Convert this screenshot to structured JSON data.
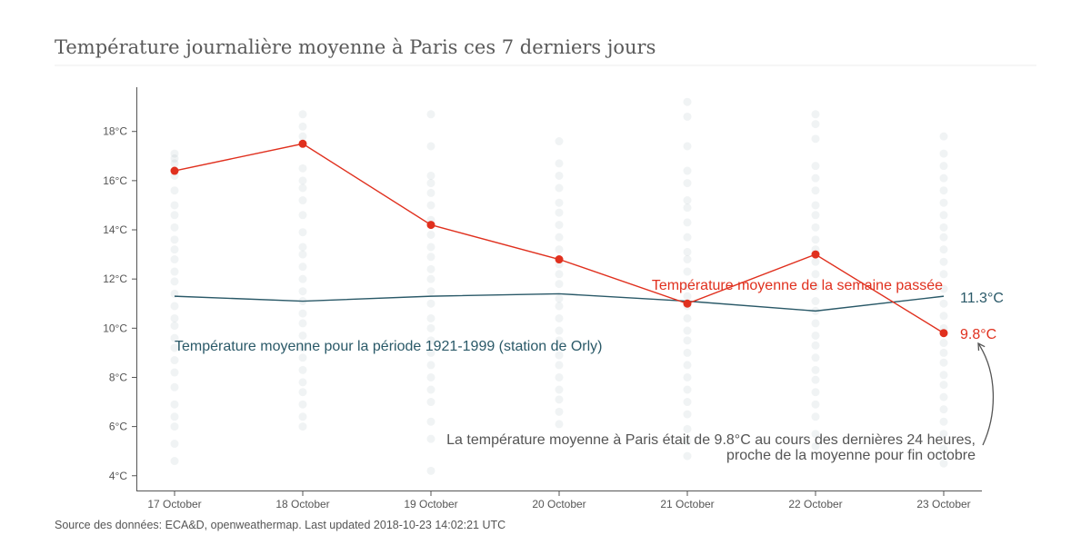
{
  "chart_data": {
    "type": "line",
    "title": "Température journalière moyenne à Paris ces 7 derniers jours",
    "categories": [
      "17 October",
      "18 October",
      "19 October",
      "20 October",
      "21 October",
      "22 October",
      "23 October"
    ],
    "y_ticks": [
      "4°C",
      "6°C",
      "8°C",
      "10°C",
      "12°C",
      "14°C",
      "16°C",
      "18°C"
    ],
    "ylim": [
      3.4,
      19.8
    ],
    "grid": false,
    "series": [
      {
        "name": "Température moyenne de la semaine passée",
        "color": "#e0301e",
        "values": [
          16.4,
          17.5,
          14.2,
          12.8,
          11.0,
          13.0,
          9.8
        ],
        "end_label": "9.8°C",
        "markers": true
      },
      {
        "name": "Température moyenne pour la période 1921-1999 (station de Orly)",
        "color": "#2a5968",
        "values": [
          11.3,
          11.1,
          11.3,
          11.4,
          11.1,
          10.7,
          11.3
        ],
        "end_label": "11.3°C",
        "markers": false
      }
    ],
    "background_points": {
      "color": "#2a5968",
      "opacity": 0.07,
      "values": [
        [
          17.1,
          16.9,
          16.7,
          16.2,
          15.6,
          15.0,
          14.6,
          14.1,
          13.6,
          13.2,
          12.8,
          12.3,
          11.9,
          11.4,
          10.9,
          10.4,
          10.1,
          9.6,
          9.2,
          8.7,
          8.2,
          7.6,
          6.9,
          6.4,
          6.0,
          5.3,
          4.6
        ],
        [
          18.7,
          18.2,
          17.8,
          16.5,
          16.0,
          15.7,
          15.2,
          14.6,
          13.9,
          13.3,
          13.0,
          12.5,
          12.0,
          11.5,
          11.1,
          10.6,
          10.2,
          9.7,
          9.2,
          8.8,
          8.3,
          7.8,
          7.4,
          6.9,
          6.4,
          6.0
        ],
        [
          18.7,
          17.4,
          16.2,
          15.9,
          15.5,
          15.0,
          14.4,
          13.8,
          13.3,
          12.9,
          12.4,
          12.0,
          11.5,
          11.0,
          10.4,
          10.0,
          9.5,
          9.0,
          8.5,
          8.0,
          7.5,
          7.0,
          6.2,
          5.5,
          4.2
        ],
        [
          17.6,
          16.7,
          16.2,
          15.7,
          15.1,
          14.7,
          14.2,
          13.7,
          13.2,
          12.6,
          12.2,
          11.8,
          11.2,
          10.9,
          10.4,
          9.9,
          9.5,
          8.9,
          8.5,
          8.0,
          7.5,
          7.1,
          6.6,
          6.1
        ],
        [
          19.2,
          18.6,
          17.4,
          16.4,
          15.9,
          15.2,
          14.9,
          14.3,
          13.7,
          13.1,
          12.8,
          12.3,
          11.7,
          11.3,
          10.9,
          10.4,
          9.9,
          9.5,
          9.0,
          8.5,
          8.0,
          7.5,
          7.0,
          6.5,
          5.9,
          5.4,
          4.8
        ],
        [
          18.7,
          18.3,
          17.7,
          16.6,
          16.1,
          15.6,
          15.0,
          14.6,
          14.1,
          13.6,
          13.2,
          12.7,
          12.2,
          11.7,
          11.1,
          10.7,
          10.2,
          9.7,
          9.3,
          8.8,
          8.3,
          7.9,
          7.4,
          6.9,
          6.4,
          5.7,
          5.2
        ],
        [
          17.8,
          17.1,
          16.6,
          16.1,
          15.6,
          15.1,
          14.6,
          14.1,
          13.7,
          13.2,
          12.7,
          12.2,
          11.6,
          11.0,
          10.5,
          10.0,
          9.4,
          9.0,
          8.6,
          8.1,
          7.7,
          7.2,
          6.7,
          6.2,
          5.7,
          5.1,
          4.5
        ]
      ]
    },
    "series_labels": {
      "past_week": "Température moyenne de la semaine passée",
      "historical": "Température moyenne pour la période 1921-1999 (station de Orly)"
    },
    "annotation": {
      "line1": "La température moyenne à Paris était de 9.8°C au cours des dernières 24 heures,",
      "line2": "proche de la moyenne pour fin octobre"
    },
    "source": "Source des données: ECA&D, openweathermap. Last updated 2018-10-23 14:02:21 UTC"
  }
}
